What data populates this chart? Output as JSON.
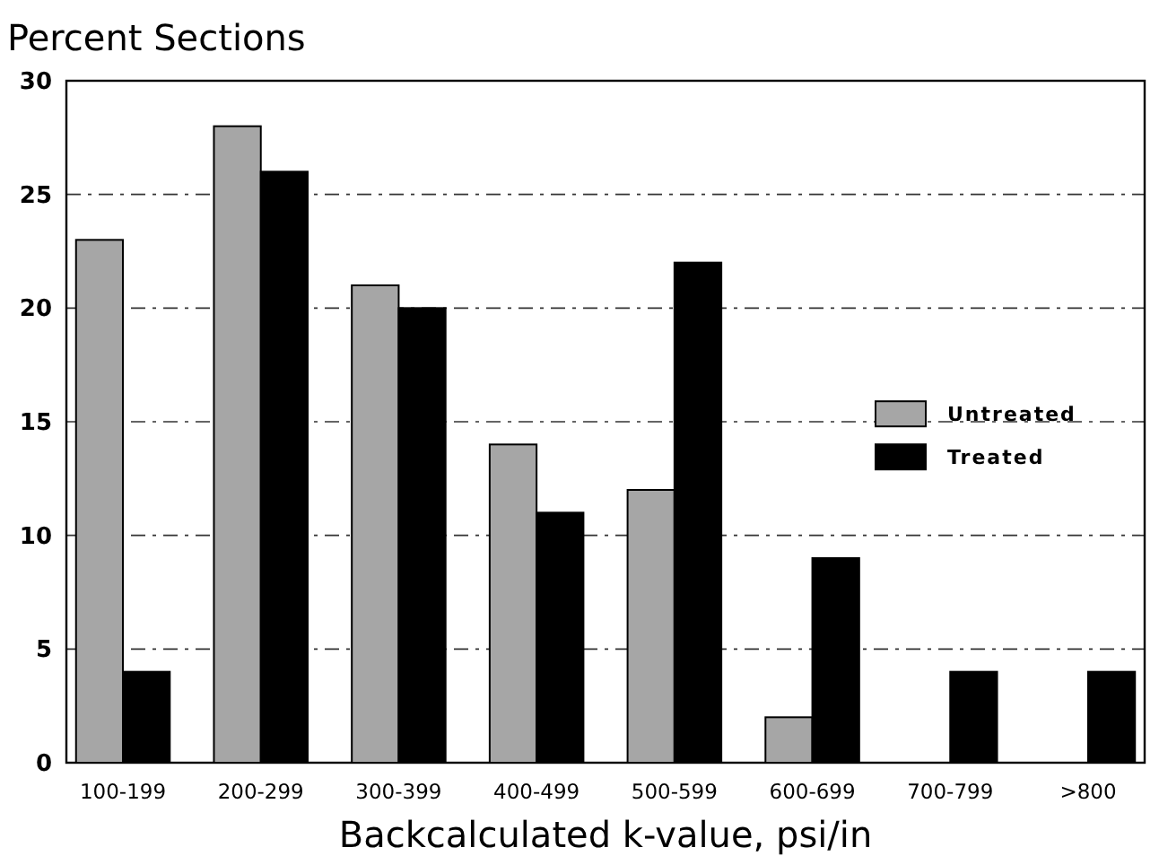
{
  "chart_data": {
    "type": "bar",
    "ylabel": "Percent Sections",
    "xlabel": "Backcalculated k-value, psi/in",
    "categories": [
      "100-199",
      "200-299",
      "300-399",
      "400-499",
      "500-599",
      "600-699",
      "700-799",
      ">800"
    ],
    "series": [
      {
        "name": "Untreated",
        "color": "#a6a6a6",
        "values": [
          23,
          28,
          21,
          14,
          12,
          2,
          0,
          0
        ]
      },
      {
        "name": "Treated",
        "color": "#000000",
        "values": [
          4,
          26,
          20,
          11,
          22,
          9,
          4,
          4
        ]
      }
    ],
    "ylim": [
      0,
      30
    ],
    "yticks": [
      0,
      5,
      10,
      15,
      20,
      25,
      30
    ],
    "grid": "y",
    "legend": "right"
  }
}
